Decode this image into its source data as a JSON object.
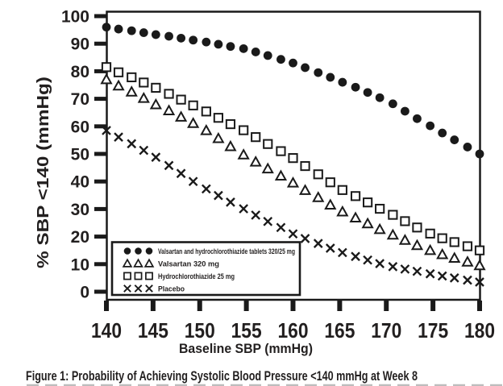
{
  "figure": {
    "caption": "Figure 1: Probability of Achieving Systolic Blood Pressure <140 mmHg at Week 8"
  },
  "chart_data": {
    "type": "scatter",
    "title": "",
    "xlabel": "Baseline SBP (mmHg)",
    "ylabel": "% SBP <140 (mmHg)",
    "xlim": [
      140,
      180
    ],
    "ylim": [
      0,
      100
    ],
    "x_ticks": [
      140,
      145,
      150,
      155,
      160,
      165,
      170,
      175,
      180
    ],
    "y_ticks": [
      0,
      10,
      20,
      30,
      40,
      50,
      60,
      70,
      80,
      90,
      100
    ],
    "grid": false,
    "legend_position": "inside-lower-left",
    "x": [
      140,
      141.3,
      142.7,
      144,
      145.3,
      146.7,
      148,
      149.3,
      150.7,
      152,
      153.3,
      154.7,
      156,
      157.3,
      158.7,
      160,
      161.3,
      162.7,
      164,
      165.3,
      166.7,
      168,
      169.3,
      170.7,
      172,
      173.3,
      174.7,
      176,
      177.3,
      178.7,
      180
    ],
    "series": [
      {
        "name": "Valsartan and hydrochlorothiazide tablets 320/25 mg",
        "marker": "filled-circle",
        "values": [
          96,
          95.3,
          94.7,
          94,
          93.3,
          92.7,
          92,
          91.3,
          90.6,
          89.8,
          89,
          88.2,
          87,
          85.7,
          84.3,
          83,
          81.3,
          79.5,
          77.8,
          76,
          74.2,
          72.3,
          70.4,
          68.2,
          65.5,
          62.8,
          60.2,
          57.6,
          55.1,
          52.5,
          50
        ]
      },
      {
        "name": "Valsartan 320 mg",
        "marker": "open-triangle",
        "values": [
          77,
          74.7,
          72.5,
          70.2,
          67.9,
          65.7,
          63.4,
          61.1,
          58.5,
          55.6,
          52.7,
          49.7,
          47.1,
          44.6,
          42,
          39.5,
          36.8,
          34.2,
          31.5,
          29,
          26.8,
          24.7,
          22.6,
          20.6,
          18.7,
          16.8,
          15,
          13.5,
          12.2,
          10.8,
          9.5
        ]
      },
      {
        "name": "Hydrochlorothiazide 25 mg",
        "marker": "open-square",
        "values": [
          81.5,
          79.6,
          77.8,
          75.9,
          74,
          71.8,
          69.7,
          67.6,
          65.4,
          63.1,
          60.8,
          58.6,
          56.1,
          53.6,
          51,
          48.5,
          45.6,
          42.6,
          39.7,
          36.9,
          34.7,
          32.4,
          30.1,
          27.9,
          25.6,
          23.3,
          21.1,
          19.4,
          18,
          16.5,
          15
        ]
      },
      {
        "name": "Placebo",
        "marker": "x-cross",
        "values": [
          58.5,
          56.1,
          53.7,
          51.3,
          48.8,
          45.8,
          42.9,
          40,
          37.3,
          34.9,
          32.5,
          30.1,
          27.8,
          25.5,
          23.3,
          21,
          19.3,
          17.5,
          15.8,
          14.2,
          12.8,
          11.5,
          10.2,
          9.1,
          8.2,
          7.4,
          6.5,
          5.7,
          5,
          4.2,
          3.5
        ]
      }
    ],
    "colors": {
      "marker": "#1a1a1a",
      "text": "#221f1f",
      "background": "#ffffff"
    }
  }
}
